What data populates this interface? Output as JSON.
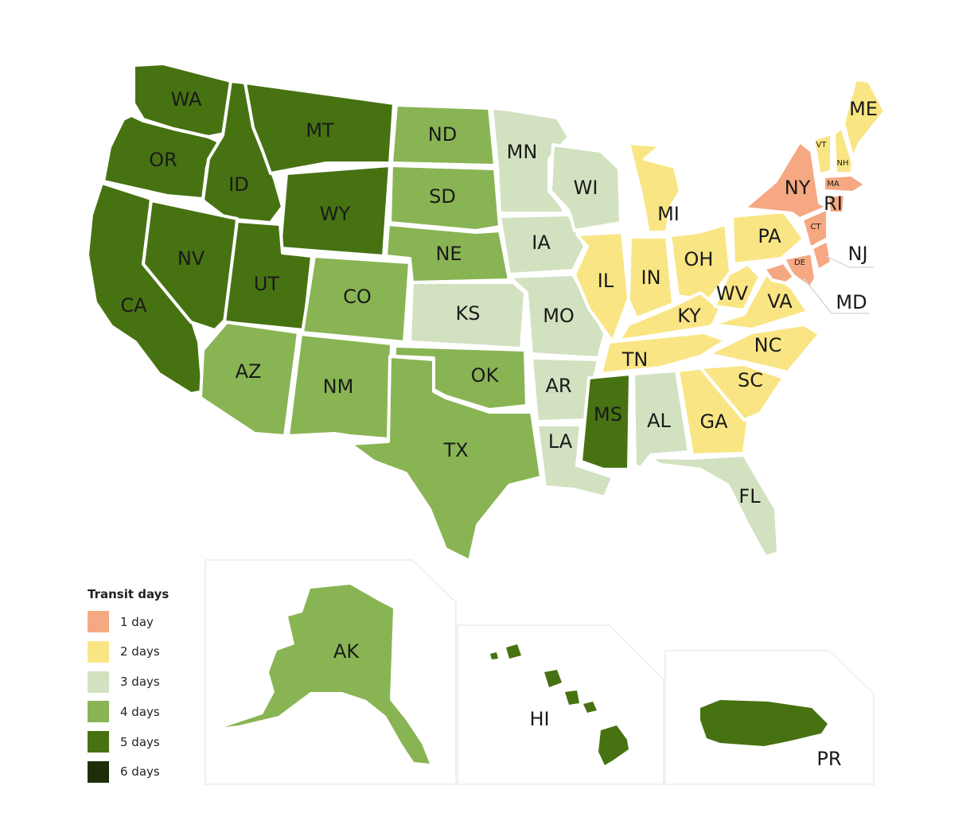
{
  "legend": {
    "title": "Transit days",
    "items": [
      {
        "label": "1 day",
        "days": 1,
        "color": "#f5a882"
      },
      {
        "label": "2 days",
        "days": 2,
        "color": "#fae584"
      },
      {
        "label": "3 days",
        "days": 3,
        "color": "#d2e1c0"
      },
      {
        "label": "4 days",
        "days": 4,
        "color": "#89b454"
      },
      {
        "label": "5 days",
        "days": 5,
        "color": "#477212"
      },
      {
        "label": "6 days",
        "days": 6,
        "color": "#1c2f08"
      }
    ]
  },
  "states": [
    {
      "code": "WA",
      "days": 5
    },
    {
      "code": "OR",
      "days": 5
    },
    {
      "code": "CA",
      "days": 5
    },
    {
      "code": "ID",
      "days": 5
    },
    {
      "code": "NV",
      "days": 5
    },
    {
      "code": "MT",
      "days": 5
    },
    {
      "code": "WY",
      "days": 5
    },
    {
      "code": "UT",
      "days": 5
    },
    {
      "code": "AZ",
      "days": 4
    },
    {
      "code": "CO",
      "days": 4
    },
    {
      "code": "NM",
      "days": 4
    },
    {
      "code": "ND",
      "days": 4
    },
    {
      "code": "SD",
      "days": 4
    },
    {
      "code": "NE",
      "days": 4
    },
    {
      "code": "KS",
      "days": 3
    },
    {
      "code": "OK",
      "days": 4
    },
    {
      "code": "TX",
      "days": 4
    },
    {
      "code": "MN",
      "days": 3
    },
    {
      "code": "IA",
      "days": 3
    },
    {
      "code": "MO",
      "days": 3
    },
    {
      "code": "AR",
      "days": 3
    },
    {
      "code": "LA",
      "days": 3
    },
    {
      "code": "WI",
      "days": 3
    },
    {
      "code": "IL",
      "days": 2
    },
    {
      "code": "MI",
      "days": 2
    },
    {
      "code": "IN",
      "days": 2
    },
    {
      "code": "OH",
      "days": 2
    },
    {
      "code": "KY",
      "days": 2
    },
    {
      "code": "TN",
      "days": 2
    },
    {
      "code": "MS",
      "days": 5
    },
    {
      "code": "AL",
      "days": 3
    },
    {
      "code": "GA",
      "days": 2
    },
    {
      "code": "FL",
      "days": 3
    },
    {
      "code": "SC",
      "days": 2
    },
    {
      "code": "NC",
      "days": 2
    },
    {
      "code": "VA",
      "days": 2
    },
    {
      "code": "WV",
      "days": 2
    },
    {
      "code": "PA",
      "days": 2
    },
    {
      "code": "NY",
      "days": 1
    },
    {
      "code": "VT",
      "days": 2
    },
    {
      "code": "NH",
      "days": 2
    },
    {
      "code": "ME",
      "days": 2
    },
    {
      "code": "MA",
      "days": 1
    },
    {
      "code": "RI",
      "days": 1
    },
    {
      "code": "CT",
      "days": 1
    },
    {
      "code": "NJ",
      "days": 1
    },
    {
      "code": "DE",
      "days": 1
    },
    {
      "code": "MD",
      "days": 1
    },
    {
      "code": "AK",
      "days": 4
    },
    {
      "code": "HI",
      "days": 5
    },
    {
      "code": "PR",
      "days": 5
    }
  ]
}
